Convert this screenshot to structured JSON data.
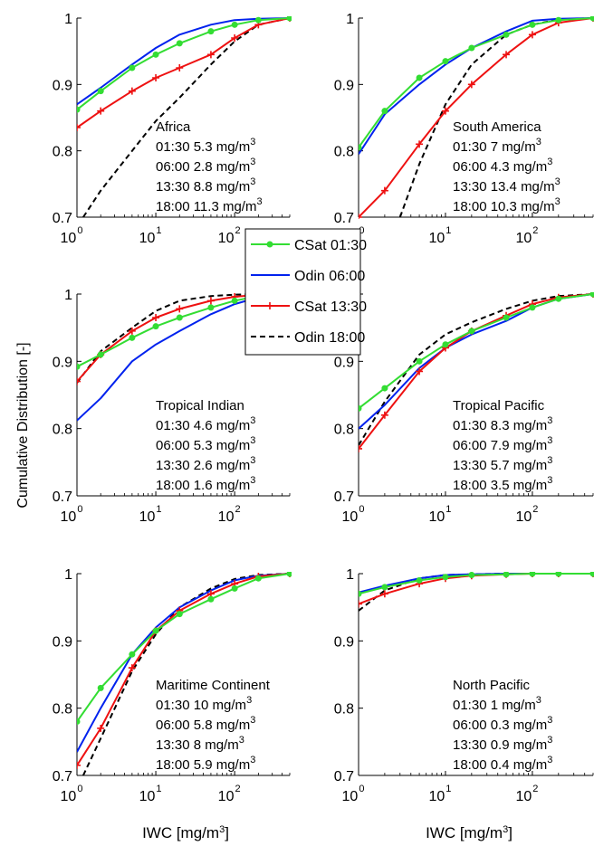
{
  "figure": {
    "ylabel": "Cumulative Distribution [-]",
    "xlabel_main": "IWC [mg/m",
    "xlabel_sup": "3",
    "xlabel_tail": "]",
    "unit_main": "mg/m",
    "unit_sup": "3",
    "legend": [
      {
        "name": "CSat 01:30",
        "color": "#33dd33",
        "marker": "circle",
        "dash": "solid"
      },
      {
        "name": "Odin 06:00",
        "color": "#0022ee",
        "marker": "none",
        "dash": "solid"
      },
      {
        "name": "CSat 13:30",
        "color": "#ee1111",
        "marker": "plus",
        "dash": "solid"
      },
      {
        "name": "Odin 18:00",
        "color": "#000000",
        "marker": "none",
        "dash": "dashed"
      }
    ]
  },
  "chart_data": [
    {
      "type": "line",
      "title": "Africa",
      "xscale": "log",
      "xlim": [
        1,
        500
      ],
      "ylim": [
        0.7,
        1.0
      ],
      "yticks": [
        "0.7",
        "0.8",
        "0.9",
        "1"
      ],
      "xtick_base": "10",
      "xtick_exps": [
        "0",
        "1",
        "2"
      ],
      "means": [
        {
          "time": "01:30",
          "value": "5.3"
        },
        {
          "time": "06:00",
          "value": "2.8"
        },
        {
          "time": "13:30",
          "value": "8.8"
        },
        {
          "time": "18:00",
          "value": "11.3"
        }
      ],
      "series": [
        {
          "x": [
            1,
            2,
            5,
            10,
            20,
            50,
            100,
            200,
            500
          ],
          "y": [
            0.862,
            0.89,
            0.925,
            0.945,
            0.962,
            0.98,
            0.99,
            0.997,
            1.0
          ]
        },
        {
          "x": [
            1,
            2,
            5,
            10,
            20,
            50,
            100,
            200,
            500
          ],
          "y": [
            0.87,
            0.895,
            0.93,
            0.955,
            0.975,
            0.99,
            0.997,
            0.999,
            1.0
          ]
        },
        {
          "x": [
            1,
            2,
            5,
            10,
            20,
            50,
            100,
            200,
            500
          ],
          "y": [
            0.835,
            0.86,
            0.89,
            0.91,
            0.925,
            0.945,
            0.97,
            0.99,
            1.0
          ]
        },
        {
          "x": [
            1.2,
            2,
            5,
            10,
            20,
            50,
            100,
            200,
            500
          ],
          "y": [
            0.7,
            0.74,
            0.8,
            0.845,
            0.88,
            0.93,
            0.965,
            0.99,
            1.0
          ]
        }
      ]
    },
    {
      "type": "line",
      "title": "South America",
      "xscale": "log",
      "xlim": [
        1,
        500
      ],
      "ylim": [
        0.7,
        1.0
      ],
      "yticks": [
        "0.7",
        "0.8",
        "0.9",
        "1"
      ],
      "xtick_base": "10",
      "xtick_exps": [
        "0",
        "1",
        "2"
      ],
      "means": [
        {
          "time": "01:30",
          "value": "7"
        },
        {
          "time": "06:00",
          "value": "4.3"
        },
        {
          "time": "13:30",
          "value": "13.4"
        },
        {
          "time": "18:00",
          "value": "10.3"
        }
      ],
      "series": [
        {
          "x": [
            1,
            2,
            5,
            10,
            20,
            50,
            100,
            200,
            500
          ],
          "y": [
            0.805,
            0.86,
            0.91,
            0.935,
            0.955,
            0.975,
            0.99,
            0.997,
            1.0
          ]
        },
        {
          "x": [
            1,
            2,
            5,
            10,
            20,
            50,
            100,
            200,
            500
          ],
          "y": [
            0.795,
            0.855,
            0.9,
            0.93,
            0.955,
            0.98,
            0.996,
            0.999,
            1.0
          ]
        },
        {
          "x": [
            1,
            2,
            5,
            10,
            20,
            50,
            100,
            200,
            500
          ],
          "y": [
            0.7,
            0.74,
            0.81,
            0.86,
            0.9,
            0.945,
            0.975,
            0.993,
            1.0
          ]
        },
        {
          "x": [
            3,
            5,
            10,
            20,
            50,
            100,
            200,
            500
          ],
          "y": [
            0.7,
            0.78,
            0.87,
            0.93,
            0.975,
            0.99,
            0.998,
            1.0
          ]
        }
      ]
    },
    {
      "type": "line",
      "title": "Tropical Indian",
      "xscale": "log",
      "xlim": [
        1,
        500
      ],
      "ylim": [
        0.7,
        1.0
      ],
      "yticks": [
        "0.7",
        "0.8",
        "0.9",
        "1"
      ],
      "xtick_base": "10",
      "xtick_exps": [
        "0",
        "1",
        "2"
      ],
      "means": [
        {
          "time": "01:30",
          "value": "4.6"
        },
        {
          "time": "06:00",
          "value": "5.3"
        },
        {
          "time": "13:30",
          "value": "2.6"
        },
        {
          "time": "18:00",
          "value": "1.6"
        }
      ],
      "series": [
        {
          "x": [
            1,
            2,
            5,
            10,
            20,
            50,
            100,
            200,
            500
          ],
          "y": [
            0.892,
            0.91,
            0.935,
            0.952,
            0.965,
            0.98,
            0.99,
            0.997,
            1.0
          ]
        },
        {
          "x": [
            1,
            2,
            5,
            10,
            20,
            50,
            100,
            200,
            500
          ],
          "y": [
            0.812,
            0.845,
            0.9,
            0.925,
            0.945,
            0.97,
            0.985,
            0.995,
            1.0
          ]
        },
        {
          "x": [
            1,
            2,
            5,
            10,
            20,
            50,
            100,
            200,
            500
          ],
          "y": [
            0.87,
            0.91,
            0.945,
            0.965,
            0.978,
            0.99,
            0.996,
            0.999,
            1.0
          ]
        },
        {
          "x": [
            1,
            2,
            5,
            10,
            20,
            50,
            100,
            200,
            500
          ],
          "y": [
            0.868,
            0.915,
            0.95,
            0.975,
            0.99,
            0.997,
            0.999,
            1.0,
            1.0
          ]
        }
      ]
    },
    {
      "type": "line",
      "title": "Tropical Pacific",
      "xscale": "log",
      "xlim": [
        1,
        500
      ],
      "ylim": [
        0.7,
        1.0
      ],
      "yticks": [
        "0.7",
        "0.8",
        "0.9",
        "1"
      ],
      "xtick_base": "10",
      "xtick_exps": [
        "0",
        "1",
        "2"
      ],
      "means": [
        {
          "time": "01:30",
          "value": "8.3"
        },
        {
          "time": "06:00",
          "value": "7.9"
        },
        {
          "time": "13:30",
          "value": "5.7"
        },
        {
          "time": "18:00",
          "value": "3.5"
        }
      ],
      "series": [
        {
          "x": [
            1,
            2,
            5,
            10,
            20,
            50,
            100,
            200,
            500
          ],
          "y": [
            0.83,
            0.86,
            0.9,
            0.925,
            0.945,
            0.965,
            0.98,
            0.993,
            1.0
          ]
        },
        {
          "x": [
            1,
            2,
            5,
            10,
            20,
            50,
            100,
            200,
            500
          ],
          "y": [
            0.8,
            0.835,
            0.89,
            0.92,
            0.94,
            0.96,
            0.98,
            0.993,
            1.0
          ]
        },
        {
          "x": [
            1,
            2,
            5,
            10,
            20,
            50,
            100,
            200,
            500
          ],
          "y": [
            0.77,
            0.82,
            0.885,
            0.92,
            0.945,
            0.968,
            0.985,
            0.995,
            1.0
          ]
        },
        {
          "x": [
            1,
            2,
            5,
            10,
            20,
            50,
            100,
            200,
            500
          ],
          "y": [
            0.775,
            0.84,
            0.91,
            0.94,
            0.958,
            0.978,
            0.99,
            0.997,
            1.0
          ]
        }
      ]
    },
    {
      "type": "line",
      "title": "Maritime Continent",
      "xscale": "log",
      "xlim": [
        1,
        500
      ],
      "ylim": [
        0.7,
        1.0
      ],
      "yticks": [
        "0.7",
        "0.8",
        "0.9",
        "1"
      ],
      "xtick_base": "10",
      "xtick_exps": [
        "0",
        "1",
        "2"
      ],
      "means": [
        {
          "time": "01:30",
          "value": "10"
        },
        {
          "time": "06:00",
          "value": "5.8"
        },
        {
          "time": "13:30",
          "value": "8"
        },
        {
          "time": "18:00",
          "value": "5.9"
        }
      ],
      "series": [
        {
          "x": [
            1,
            2,
            5,
            10,
            20,
            50,
            100,
            200,
            500
          ],
          "y": [
            0.78,
            0.83,
            0.88,
            0.915,
            0.94,
            0.962,
            0.978,
            0.993,
            1.0
          ]
        },
        {
          "x": [
            1,
            2,
            5,
            10,
            20,
            50,
            100,
            200,
            500
          ],
          "y": [
            0.735,
            0.8,
            0.88,
            0.92,
            0.95,
            0.975,
            0.99,
            0.997,
            1.0
          ]
        },
        {
          "x": [
            1,
            2,
            5,
            10,
            20,
            50,
            100,
            200,
            500
          ],
          "y": [
            0.715,
            0.77,
            0.86,
            0.915,
            0.945,
            0.97,
            0.985,
            0.996,
            1.0
          ]
        },
        {
          "x": [
            1.2,
            2,
            5,
            10,
            20,
            50,
            100,
            200,
            500
          ],
          "y": [
            0.7,
            0.755,
            0.855,
            0.91,
            0.95,
            0.978,
            0.992,
            0.998,
            1.0
          ]
        }
      ]
    },
    {
      "type": "line",
      "title": "North Pacific",
      "xscale": "log",
      "xlim": [
        1,
        500
      ],
      "ylim": [
        0.7,
        1.0
      ],
      "yticks": [
        "0.7",
        "0.8",
        "0.9",
        "1"
      ],
      "xtick_base": "10",
      "xtick_exps": [
        "0",
        "1",
        "2"
      ],
      "means": [
        {
          "time": "01:30",
          "value": "1"
        },
        {
          "time": "06:00",
          "value": "0.3"
        },
        {
          "time": "13:30",
          "value": "0.9"
        },
        {
          "time": "18:00",
          "value": "0.4"
        }
      ],
      "series": [
        {
          "x": [
            1,
            2,
            5,
            10,
            20,
            50,
            100,
            200,
            500
          ],
          "y": [
            0.97,
            0.98,
            0.99,
            0.995,
            0.998,
            0.999,
            1.0,
            1.0,
            1.0
          ]
        },
        {
          "x": [
            1,
            2,
            5,
            10,
            20,
            50,
            100,
            200,
            500
          ],
          "y": [
            0.972,
            0.982,
            0.993,
            0.998,
            0.999,
            1.0,
            1.0,
            1.0,
            1.0
          ]
        },
        {
          "x": [
            1,
            2,
            5,
            10,
            20,
            50,
            100,
            200,
            500
          ],
          "y": [
            0.955,
            0.97,
            0.985,
            0.993,
            0.997,
            0.999,
            1.0,
            1.0,
            1.0
          ]
        },
        {
          "x": [
            1,
            2,
            5,
            10,
            20,
            50,
            100,
            200,
            500
          ],
          "y": [
            0.945,
            0.975,
            0.993,
            0.998,
            0.999,
            1.0,
            1.0,
            1.0,
            1.0
          ]
        }
      ]
    }
  ]
}
